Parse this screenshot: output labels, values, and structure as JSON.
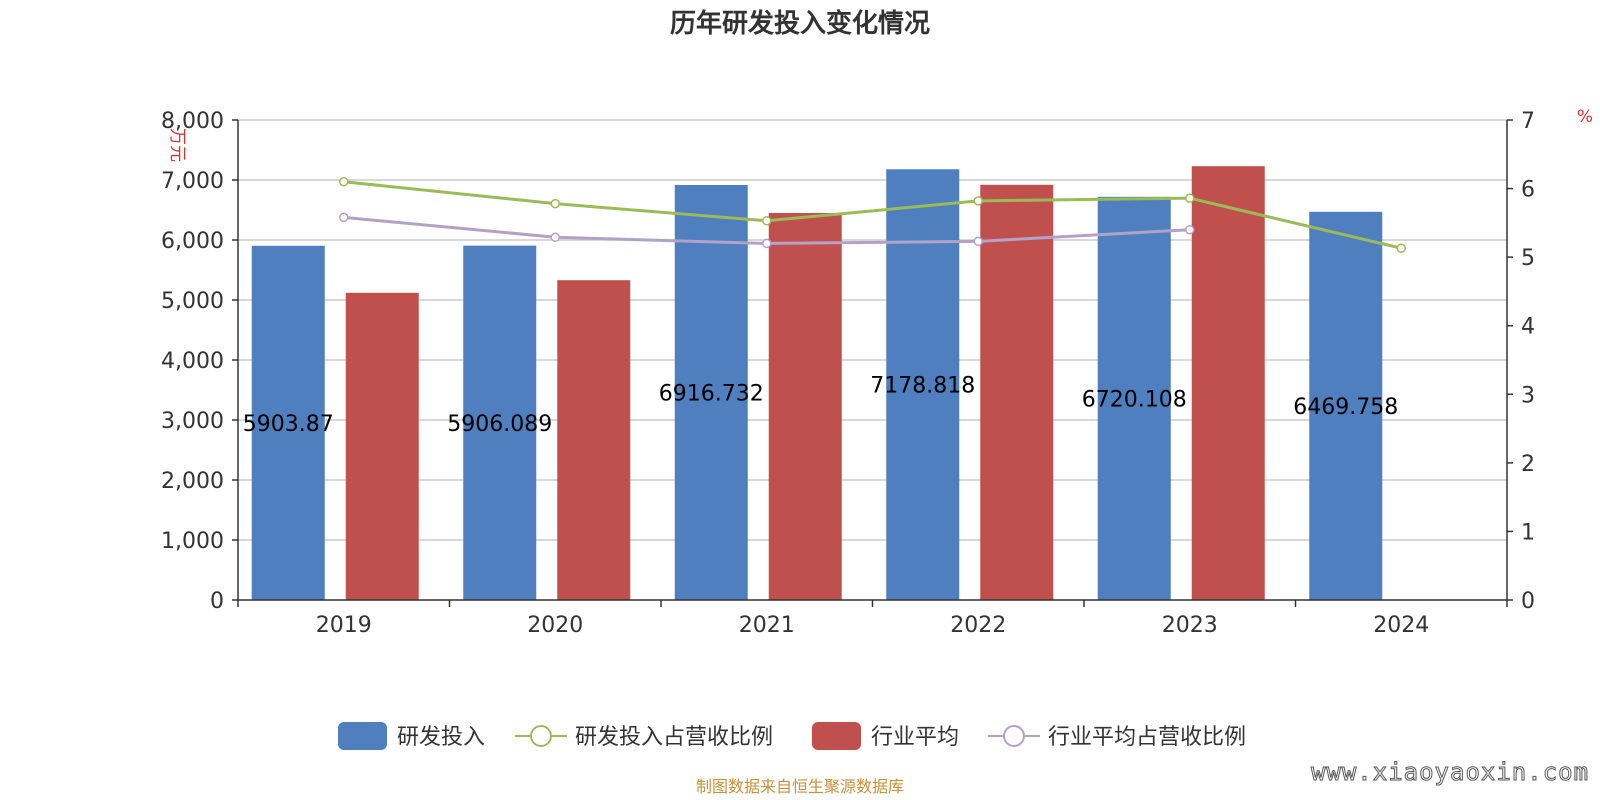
{
  "chart_data": {
    "type": "bar",
    "title": "历年研发投入变化情况",
    "categories": [
      "2019",
      "2020",
      "2021",
      "2022",
      "2023",
      "2024"
    ],
    "y_left": {
      "unit": "万元",
      "min": 0,
      "max": 8000,
      "ticks": [
        0,
        1000,
        2000,
        3000,
        4000,
        5000,
        6000,
        7000,
        8000
      ],
      "tick_labels": [
        "0",
        "1,000",
        "2,000",
        "3,000",
        "4,000",
        "5,000",
        "6,000",
        "7,000",
        "8,000"
      ]
    },
    "y_right": {
      "unit": "%",
      "min": 0,
      "max": 7,
      "ticks": [
        0,
        1,
        2,
        3,
        4,
        5,
        6,
        7
      ],
      "tick_labels": [
        "0",
        "1",
        "2",
        "3",
        "4",
        "5",
        "6",
        "7"
      ]
    },
    "bar_series": [
      {
        "name": "研发投入",
        "color": "#4f7fbe",
        "values": [
          5903.87,
          5906.089,
          6916.732,
          7178.818,
          6720.108,
          6469.758
        ],
        "labels": [
          "5903.87",
          "5906.089",
          "6916.732",
          "7178.818",
          "6720.108",
          "6469.758"
        ]
      },
      {
        "name": "行业平均",
        "color": "#c0504d",
        "values": [
          5120,
          5330,
          6450,
          6920,
          7230,
          null
        ]
      }
    ],
    "line_series": [
      {
        "name": "研发投入占营收比例",
        "color": "#9bbb59",
        "values": [
          6.1,
          5.78,
          5.53,
          5.82,
          5.86,
          5.13
        ]
      },
      {
        "name": "行业平均占营收比例",
        "color": "#b3a2c7",
        "values": [
          5.58,
          5.29,
          5.2,
          5.23,
          5.4,
          null
        ]
      }
    ],
    "legend": [
      "研发投入",
      "研发投入占营收比例",
      "行业平均",
      "行业平均占营收比例"
    ],
    "legend_position": "bottom-center"
  },
  "footer": {
    "source": "制图数据来自恒生聚源数据库",
    "source_color": "#c8913a",
    "watermark": "www.xiaoyaoxin.com"
  },
  "colors": {
    "axis": "#333333",
    "grid": "#cccccc",
    "unit": "#e03030"
  }
}
